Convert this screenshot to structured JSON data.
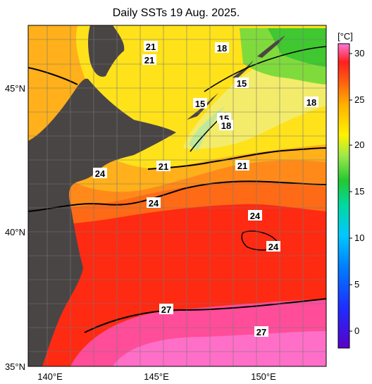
{
  "title": "Daily SSTs 19 Aug. 2025.",
  "colorbar": {
    "unit": "[°C]",
    "ticks": [
      "30",
      "25",
      "20",
      "15",
      "10",
      "5",
      "0"
    ]
  },
  "axes": {
    "lat_labels": [
      "45°N",
      "40°N",
      "35°N"
    ],
    "lon_labels": [
      "140°E",
      "145°E",
      "150°E"
    ]
  },
  "contour_labels": [
    "21",
    "21",
    "18",
    "15",
    "15",
    "18",
    "15",
    "18",
    "24",
    "21",
    "21",
    "24",
    "24",
    "24",
    "27",
    "27"
  ],
  "colors": {
    "land": "#4a4545",
    "warm_red": "#ff2f10",
    "orange": "#ff8a1a",
    "yellow": "#ffe21a",
    "green": "#3fd230",
    "pink": "#ff4d9a"
  }
}
